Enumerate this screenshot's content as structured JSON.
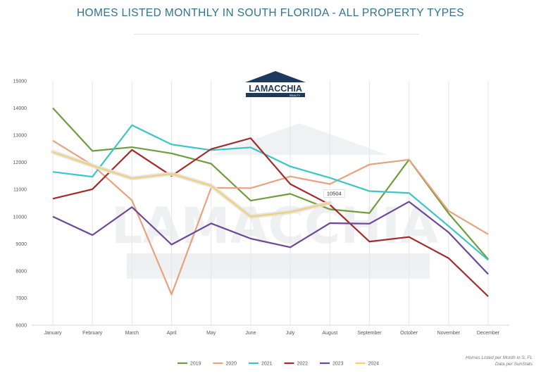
{
  "header": {
    "title": "HOMES LISTED MONTHLY IN SOUTH FLORIDA - ALL PROPERTY TYPES"
  },
  "logo": {
    "name": "LAMACCHIA",
    "sub": "REALTY"
  },
  "source": {
    "line1": "Homes Listed per Month in S. FL",
    "line2": "Data per SunStats"
  },
  "chart_data": {
    "type": "line",
    "title": "HOMES LISTED MONTHLY IN SOUTH FLORIDA - ALL PROPERTY TYPES",
    "xlabel": "",
    "ylabel": "",
    "categories": [
      "January",
      "February",
      "March",
      "April",
      "May",
      "June",
      "July",
      "August",
      "September",
      "October",
      "November",
      "December"
    ],
    "ylim": [
      6000,
      15000
    ],
    "yticks": [
      6000,
      7000,
      8000,
      9000,
      10000,
      11000,
      12000,
      13000,
      14000,
      15000
    ],
    "grid": "vertical",
    "legend_position": "bottom",
    "series": [
      {
        "name": "2019",
        "color": "#6e9e3c",
        "values": [
          14000,
          12420,
          12560,
          12330,
          11950,
          10590,
          10840,
          10270,
          10130,
          12100,
          10120,
          8430
        ]
      },
      {
        "name": "2020",
        "color": "#e8a27e",
        "values": [
          12800,
          11900,
          10600,
          7130,
          11060,
          11050,
          11480,
          11200,
          11920,
          12100,
          10210,
          9350
        ]
      },
      {
        "name": "2021",
        "color": "#3cc5c8",
        "values": [
          11650,
          11470,
          13370,
          12660,
          12450,
          12550,
          11850,
          11430,
          10940,
          10870,
          9650,
          8400
        ]
      },
      {
        "name": "2022",
        "color": "#a52a2a",
        "values": [
          10660,
          11010,
          12460,
          11500,
          12490,
          12890,
          11200,
          10440,
          9080,
          9250,
          8470,
          7060
        ]
      },
      {
        "name": "2023",
        "color": "#6e4796",
        "values": [
          10000,
          9320,
          10350,
          8970,
          9750,
          9190,
          8870,
          9760,
          9740,
          10550,
          9420,
          7880
        ]
      },
      {
        "name": "2024",
        "color": "#f2d075",
        "values": [
          12380,
          11880,
          11410,
          11580,
          11140,
          10000,
          10170,
          10504,
          null,
          null,
          null,
          null
        ]
      }
    ],
    "annotations": [
      {
        "series": "2024",
        "category": "August",
        "text": "10504"
      }
    ]
  }
}
